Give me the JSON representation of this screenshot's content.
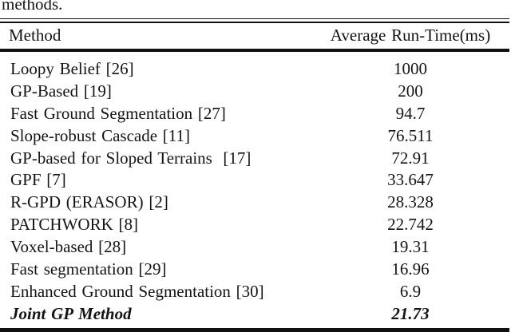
{
  "caption_fragment": "methods.",
  "colors": {
    "background": "#ffffff",
    "text": "#141414",
    "rule": "#111111"
  },
  "table": {
    "headers": [
      "Method",
      "Average Run-Time(ms)"
    ],
    "rows": [
      {
        "method": "Loopy Belief [26]",
        "runtime": "1000"
      },
      {
        "method": "GP-Based [19]",
        "runtime": "200"
      },
      {
        "method": "Fast Ground Segmentation [27]",
        "runtime": "94.7"
      },
      {
        "method": "Slope-robust Cascade [11]",
        "runtime": "76.511"
      },
      {
        "method": "GP-based for Sloped Terrains  [17]",
        "runtime": "72.91"
      },
      {
        "method": "GPF [7]",
        "runtime": "33.647"
      },
      {
        "method": "R-GPD (ERASOR) [2]",
        "runtime": "28.328"
      },
      {
        "method": "PATCHWORK [8]",
        "runtime": "22.742"
      },
      {
        "method": "Voxel-based [28]",
        "runtime": "19.31"
      },
      {
        "method": "Fast segmentation [29]",
        "runtime": "16.96"
      },
      {
        "method": "Enhanced Ground Segmentation [30]",
        "runtime": "6.9"
      },
      {
        "method": "Joint GP Method",
        "runtime": "21.73",
        "emphasis": "bold-italic"
      }
    ]
  }
}
